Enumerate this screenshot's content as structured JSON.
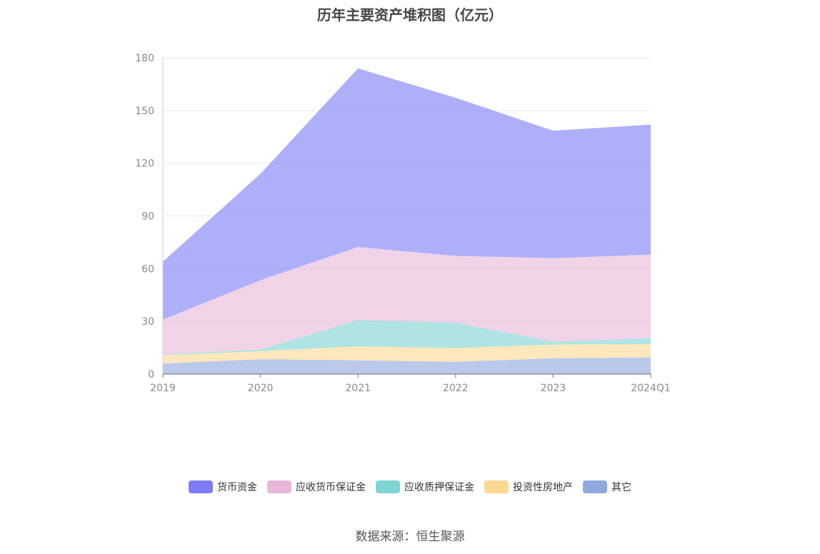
{
  "title": "历年主要资产堆积图（亿元）",
  "source": "数据来源：恒生聚源",
  "chart_data": {
    "type": "area",
    "stacked": true,
    "title": "历年主要资产堆积图（亿元）",
    "categories": [
      "2019",
      "2020",
      "2021",
      "2022",
      "2023",
      "2024Q1"
    ],
    "ylim": [
      0,
      180
    ],
    "yticks": [
      0,
      30,
      60,
      90,
      120,
      150,
      180
    ],
    "grid": true,
    "legend_position": "bottom",
    "series": [
      {
        "name": "其它",
        "color": "#8fa8dd",
        "values": [
          6.0,
          8.5,
          7.8,
          7.0,
          9.0,
          9.5
        ]
      },
      {
        "name": "投资性房地产",
        "color": "#fcd993",
        "values": [
          4.8,
          4.5,
          8.0,
          7.8,
          7.8,
          7.5
        ]
      },
      {
        "name": "应收质押保证金",
        "color": "#7fd4d4",
        "values": [
          0.5,
          1.0,
          15.0,
          14.5,
          1.7,
          3.5
        ]
      },
      {
        "name": "应收货币保证金",
        "color": "#e8b8da",
        "values": [
          19.7,
          39.5,
          41.5,
          38.0,
          47.5,
          47.5
        ]
      },
      {
        "name": "货币资金",
        "color": "#7b7ef5",
        "values": [
          33.0,
          60.5,
          101.7,
          90.0,
          72.5,
          74.0
        ]
      }
    ]
  },
  "legend_order": [
    "货币资金",
    "应收货币保证金",
    "应收质押保证金",
    "投资性房地产",
    "其它"
  ]
}
